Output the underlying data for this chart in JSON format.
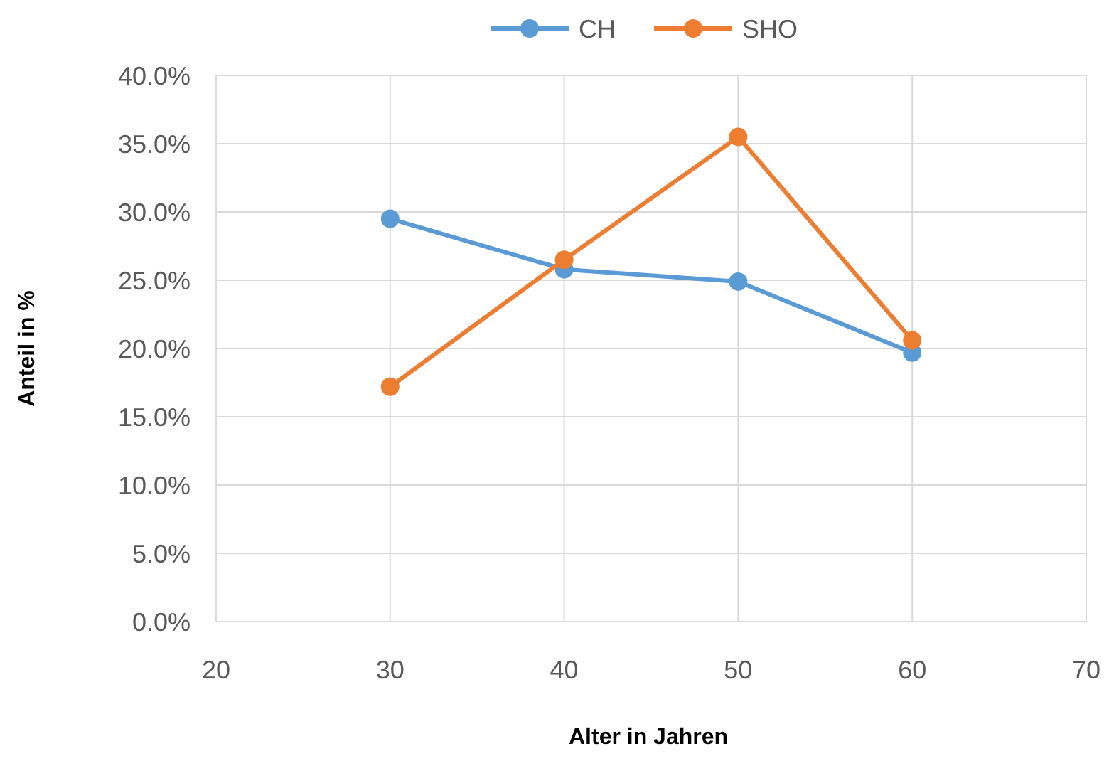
{
  "chart_data": {
    "type": "line",
    "xlabel": "Alter in Jahren",
    "ylabel": "Anteil in %",
    "x": [
      30,
      40,
      50,
      60
    ],
    "series": [
      {
        "name": "CH",
        "color": "#5b9bd5",
        "values": [
          29.5,
          25.8,
          24.9,
          19.7
        ]
      },
      {
        "name": "SHO",
        "color": "#ed7d31",
        "values": [
          17.2,
          26.5,
          35.5,
          20.6
        ]
      }
    ],
    "xlim": [
      20,
      70
    ],
    "xticks": [
      20,
      30,
      40,
      50,
      60,
      70
    ],
    "ylim": [
      0,
      40
    ],
    "yticks": [
      {
        "value": 0,
        "label": "0.0%"
      },
      {
        "value": 5,
        "label": "5.0%"
      },
      {
        "value": 10,
        "label": "10.0%"
      },
      {
        "value": 15,
        "label": "15.0%"
      },
      {
        "value": 20,
        "label": "20.0%"
      },
      {
        "value": 25,
        "label": "25.0%"
      },
      {
        "value": 30,
        "label": "30.0%"
      },
      {
        "value": 35,
        "label": "35.0%"
      },
      {
        "value": 40,
        "label": "40.0%"
      }
    ],
    "grid": true,
    "legend": "top",
    "marker": "circle",
    "line_style": "solid"
  }
}
